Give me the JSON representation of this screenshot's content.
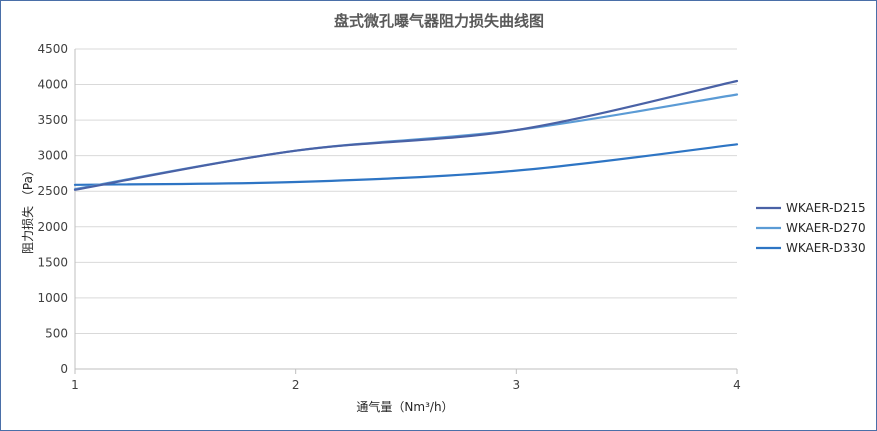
{
  "chart_data": {
    "type": "line",
    "title": "盘式微孔曝气器阻力损失曲线图",
    "xlabel": "通气量（Nm³/h）",
    "ylabel": "阻力损失 （Pa）",
    "x_ticks": [
      "1",
      "2",
      "3",
      "4"
    ],
    "y_ticks": [
      "0",
      "500",
      "1000",
      "1500",
      "2000",
      "2500",
      "3000",
      "3500",
      "4000",
      "4500"
    ],
    "xlim": [
      1,
      4
    ],
    "ylim": [
      0,
      4500
    ],
    "grid": true,
    "legend_position": "right",
    "x": [
      1,
      2,
      3,
      4
    ],
    "series": [
      {
        "name": "WKAER-D215",
        "color": "#4a62a6",
        "values": [
          2520,
          3070,
          3360,
          4050
        ]
      },
      {
        "name": "WKAER-D270",
        "color": "#5b9bd5",
        "values": [
          2530,
          3070,
          3360,
          3860
        ]
      },
      {
        "name": "WKAER-D330",
        "color": "#2e75c4",
        "values": [
          2590,
          2630,
          2790,
          3160
        ]
      }
    ]
  }
}
